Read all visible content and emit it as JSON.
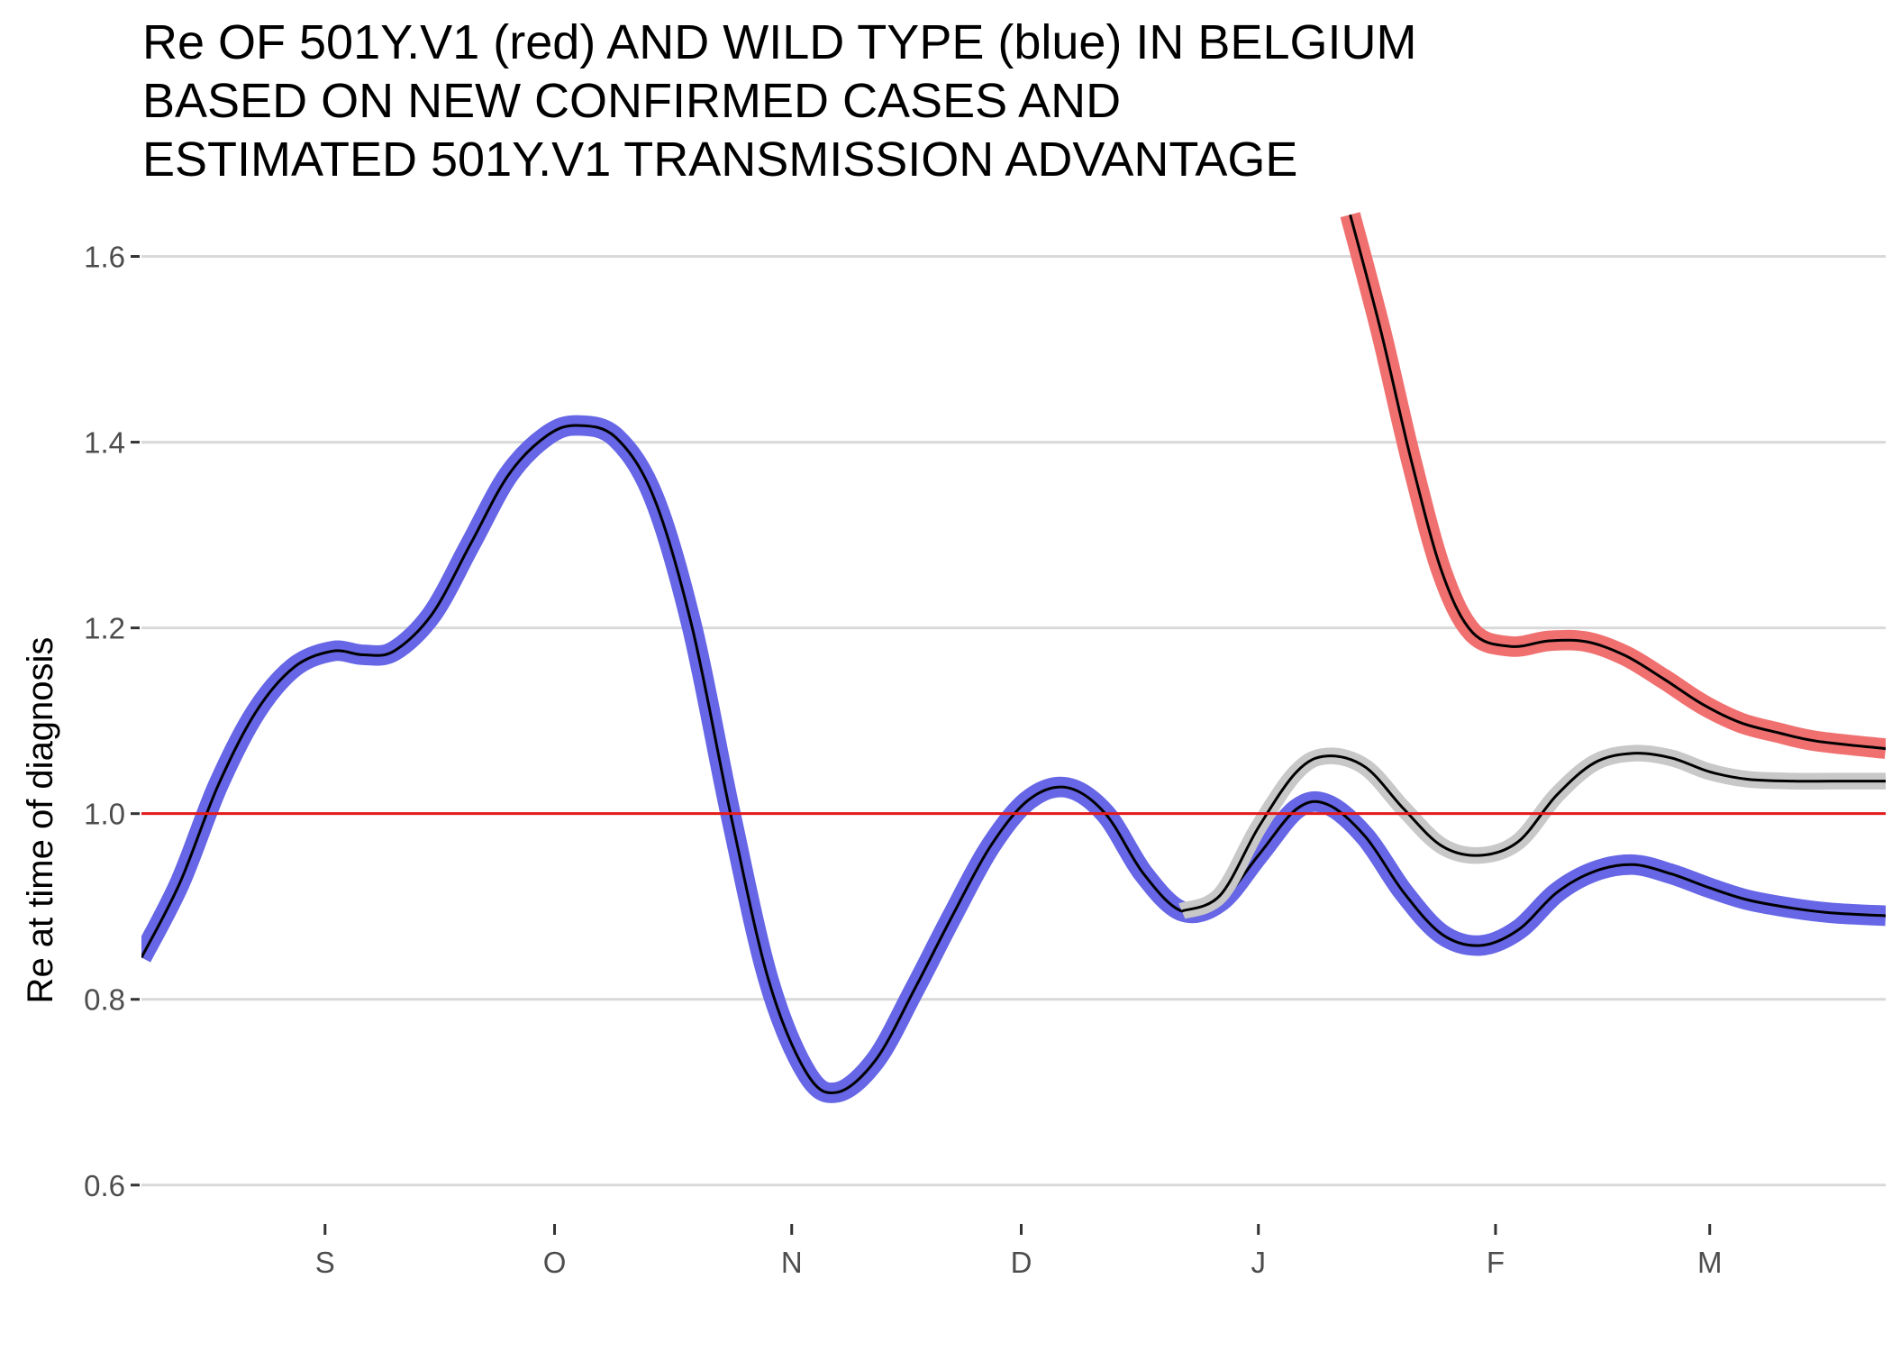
{
  "chart_data": {
    "type": "line",
    "title_lines": [
      "Re OF 501Y.V1 (red) AND WILD TYPE (blue) IN BELGIUM",
      "BASED ON NEW CONFIRMED CASES AND",
      "ESTIMATED 501Y.V1 TRANSMISSION ADVANTAGE"
    ],
    "xlabel": "",
    "ylabel": "Re at time of diagnosis",
    "xlim": [
      "2020-08-08",
      "2021-03-24"
    ],
    "ylim": [
      0.56,
      1.65
    ],
    "x_ticks": [
      {
        "date": "2020-09-01",
        "label": "S"
      },
      {
        "date": "2020-10-01",
        "label": "O"
      },
      {
        "date": "2020-11-01",
        "label": "N"
      },
      {
        "date": "2020-12-01",
        "label": "D"
      },
      {
        "date": "2021-01-01",
        "label": "J"
      },
      {
        "date": "2021-02-01",
        "label": "F"
      },
      {
        "date": "2021-03-01",
        "label": "M"
      }
    ],
    "y_ticks": [
      0.6,
      0.8,
      1.0,
      1.2,
      1.4,
      1.6
    ],
    "y_tick_labels": [
      "0.6",
      "0.8",
      "1.0",
      "1.2",
      "1.4",
      "1.6"
    ],
    "grid": "horizontal major",
    "reference_line": {
      "y": 1.0,
      "color": "#e41a1c"
    },
    "colors": {
      "wild_type_band": "#6666e6",
      "variant_band": "#f07070",
      "overall_band": "#c8c8c8",
      "line": "#000000",
      "gridline": "#d9d9d9"
    },
    "series": [
      {
        "key": "wild_type",
        "band_color": "#6666e6",
        "band_width": 0.011,
        "points": [
          [
            "2020-08-08",
            0.845
          ],
          [
            "2020-08-13",
            0.925
          ],
          [
            "2020-08-18",
            1.03
          ],
          [
            "2020-08-23",
            1.11
          ],
          [
            "2020-08-28",
            1.158
          ],
          [
            "2020-09-02",
            1.175
          ],
          [
            "2020-09-06",
            1.171
          ],
          [
            "2020-09-10",
            1.175
          ],
          [
            "2020-09-15",
            1.215
          ],
          [
            "2020-09-20",
            1.29
          ],
          [
            "2020-09-25",
            1.365
          ],
          [
            "2020-09-30",
            1.407
          ],
          [
            "2020-10-04",
            1.418
          ],
          [
            "2020-10-09",
            1.405
          ],
          [
            "2020-10-14",
            1.34
          ],
          [
            "2020-10-19",
            1.2
          ],
          [
            "2020-10-24",
            1.0
          ],
          [
            "2020-10-29",
            0.82
          ],
          [
            "2020-11-03",
            0.72
          ],
          [
            "2020-11-07",
            0.7
          ],
          [
            "2020-11-12",
            0.735
          ],
          [
            "2020-11-17",
            0.81
          ],
          [
            "2020-11-22",
            0.89
          ],
          [
            "2020-11-27",
            0.965
          ],
          [
            "2020-12-02",
            1.015
          ],
          [
            "2020-12-07",
            1.028
          ],
          [
            "2020-12-12",
            1.0
          ],
          [
            "2020-12-17",
            0.935
          ],
          [
            "2020-12-22",
            0.895
          ],
          [
            "2020-12-27",
            0.905
          ],
          [
            "2021-01-01",
            0.955
          ],
          [
            "2021-01-06",
            1.005
          ],
          [
            "2021-01-10",
            1.01
          ],
          [
            "2021-01-15",
            0.975
          ],
          [
            "2021-01-20",
            0.915
          ],
          [
            "2021-01-25",
            0.87
          ],
          [
            "2021-01-30",
            0.858
          ],
          [
            "2021-02-04",
            0.875
          ],
          [
            "2021-02-09",
            0.915
          ],
          [
            "2021-02-14",
            0.938
          ],
          [
            "2021-02-19",
            0.945
          ],
          [
            "2021-02-24",
            0.935
          ],
          [
            "2021-03-01",
            0.92
          ],
          [
            "2021-03-06",
            0.907
          ],
          [
            "2021-03-12",
            0.898
          ],
          [
            "2021-03-17",
            0.893
          ],
          [
            "2021-03-24",
            0.89
          ]
        ]
      },
      {
        "key": "overall",
        "band_color": "#c8c8c8",
        "band_width": 0.009,
        "points": [
          [
            "2020-12-22",
            0.895
          ],
          [
            "2020-12-27",
            0.912
          ],
          [
            "2021-01-01",
            0.985
          ],
          [
            "2021-01-06",
            1.045
          ],
          [
            "2021-01-10",
            1.062
          ],
          [
            "2021-01-15",
            1.05
          ],
          [
            "2021-01-20",
            1.005
          ],
          [
            "2021-01-25",
            0.965
          ],
          [
            "2021-01-30",
            0.955
          ],
          [
            "2021-02-04",
            0.97
          ],
          [
            "2021-02-09",
            1.02
          ],
          [
            "2021-02-14",
            1.055
          ],
          [
            "2021-02-19",
            1.065
          ],
          [
            "2021-02-24",
            1.06
          ],
          [
            "2021-03-01",
            1.045
          ],
          [
            "2021-03-06",
            1.037
          ],
          [
            "2021-03-12",
            1.035
          ],
          [
            "2021-03-17",
            1.035
          ],
          [
            "2021-03-24",
            1.035
          ]
        ]
      },
      {
        "key": "variant",
        "band_color": "#f07070",
        "band_width": 0.011,
        "points": [
          [
            "2021-01-13",
            1.645
          ],
          [
            "2021-01-17",
            1.52
          ],
          [
            "2021-01-21",
            1.38
          ],
          [
            "2021-01-25",
            1.26
          ],
          [
            "2021-01-29",
            1.195
          ],
          [
            "2021-02-03",
            1.18
          ],
          [
            "2021-02-08",
            1.186
          ],
          [
            "2021-02-13",
            1.185
          ],
          [
            "2021-02-18",
            1.17
          ],
          [
            "2021-02-23",
            1.145
          ],
          [
            "2021-02-28",
            1.118
          ],
          [
            "2021-03-05",
            1.098
          ],
          [
            "2021-03-10",
            1.087
          ],
          [
            "2021-03-15",
            1.078
          ],
          [
            "2021-03-24",
            1.07
          ]
        ]
      }
    ]
  }
}
